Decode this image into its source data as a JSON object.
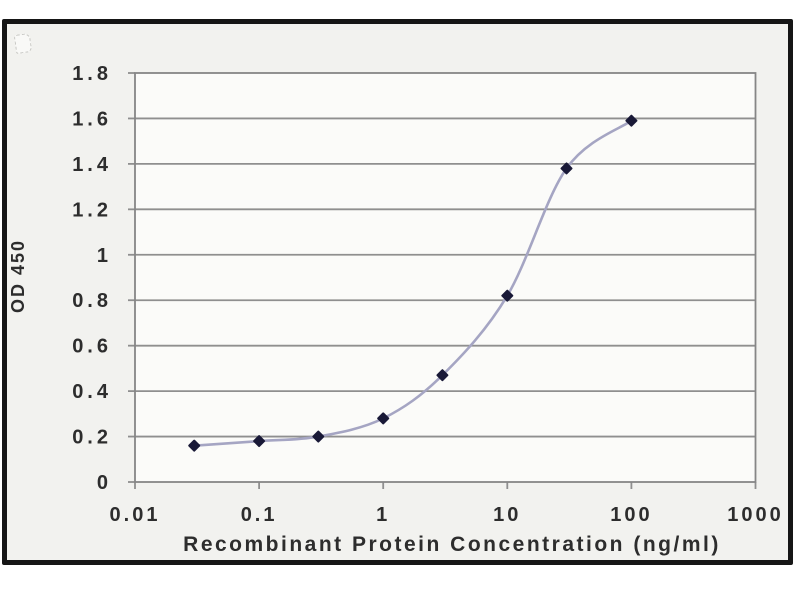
{
  "chart_data": {
    "type": "line",
    "title": "",
    "xlabel": "Recombinant Protein Concentration (ng/ml)",
    "ylabel": "OD 450",
    "x_scale": "log",
    "xlim": [
      0.01,
      1000
    ],
    "ylim": [
      0,
      1.8
    ],
    "x_ticks": [
      "0.01",
      "0.1",
      "1",
      "10",
      "100",
      "1000"
    ],
    "y_ticks": [
      "0",
      "0.2",
      "0.4",
      "0.6",
      "0.8",
      "1",
      "1.2",
      "1.4",
      "1.6",
      "1.8"
    ],
    "grid": "horizontal",
    "legend": "none",
    "series": [
      {
        "name": "OD 450",
        "marker": "diamond",
        "x": [
          0.03,
          0.1,
          0.3,
          1,
          3,
          10,
          30,
          100
        ],
        "y": [
          0.16,
          0.18,
          0.2,
          0.28,
          0.47,
          0.82,
          1.38,
          1.59
        ]
      }
    ]
  },
  "colors": {
    "page_bg": "#ffffff",
    "card_bg": "#f2f2ef",
    "frame": "#161616",
    "plot_bg": "#fbfbf9",
    "grid": "#8f8f8f",
    "plot_border": "#868686",
    "line": "#a5a5c3",
    "marker": "#191937",
    "text": "#2d2d2d"
  }
}
